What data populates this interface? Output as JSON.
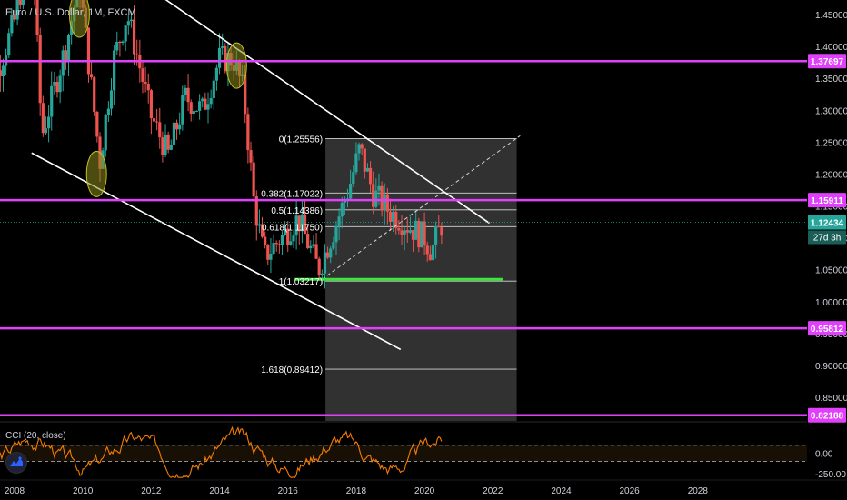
{
  "header": {
    "symbol_title": "Euro / U.S. Dollar, 1M, FXCM"
  },
  "indicator": {
    "title": "CCI (20, close)"
  },
  "icons": {
    "logo": "tradingview-logo-icon"
  },
  "colors": {
    "background": "#000000",
    "bull": "#26a69a",
    "bear": "#ef5350",
    "magenta_level": "#e040fb",
    "support": "#39e639",
    "trend_line": "#ffffff",
    "fib_box": "#3a3a3a",
    "cci": "#f57c00",
    "label_text": "#d1d4dc"
  },
  "chart_data": {
    "type": "candlestick",
    "y_axis": {
      "range": [
        0.8,
        1.47
      ],
      "ticks": [
        "0.85000",
        "0.90000",
        "0.95000",
        "1.00000",
        "1.05000",
        "1.10000",
        "1.15000",
        "1.20000",
        "1.25000",
        "1.30000",
        "1.35000",
        "1.40000",
        "1.45000"
      ]
    },
    "x_axis": {
      "range": [
        2007.0,
        2030.0
      ],
      "ticks": [
        "2008",
        "2010",
        "2012",
        "2014",
        "2016",
        "2018",
        "2020",
        "2022",
        "2024",
        "2026",
        "2028"
      ]
    },
    "price_path": [
      [
        2007.0,
        1.3
      ],
      [
        2007.5,
        1.36
      ],
      [
        2008.0,
        1.44
      ],
      [
        2008.5,
        1.57
      ],
      [
        2008.8,
        1.26
      ],
      [
        2009.0,
        1.3
      ],
      [
        2009.5,
        1.4
      ],
      [
        2009.9,
        1.5
      ],
      [
        2010.2,
        1.36
      ],
      [
        2010.5,
        1.22
      ],
      [
        2010.9,
        1.38
      ],
      [
        2011.3,
        1.45
      ],
      [
        2011.7,
        1.36
      ],
      [
        2012.0,
        1.29
      ],
      [
        2012.5,
        1.23
      ],
      [
        2013.0,
        1.32
      ],
      [
        2013.5,
        1.3
      ],
      [
        2014.0,
        1.38
      ],
      [
        2014.4,
        1.38
      ],
      [
        2014.7,
        1.33
      ],
      [
        2015.0,
        1.16
      ],
      [
        2015.3,
        1.07
      ],
      [
        2015.8,
        1.1
      ],
      [
        2016.3,
        1.13
      ],
      [
        2016.9,
        1.05
      ],
      [
        2017.4,
        1.12
      ],
      [
        2017.8,
        1.18
      ],
      [
        2018.1,
        1.24
      ],
      [
        2018.5,
        1.17
      ],
      [
        2019.0,
        1.14
      ],
      [
        2019.5,
        1.12
      ],
      [
        2020.0,
        1.1
      ],
      [
        2020.2,
        1.08
      ],
      [
        2020.5,
        1.12
      ]
    ],
    "horizontal_levels": [
      {
        "label": "1.37697",
        "value": 1.37697
      },
      {
        "label": "1.15911",
        "value": 1.15911
      },
      {
        "label": "0.95812",
        "value": 0.95812
      },
      {
        "label": "0.82188",
        "value": 0.82188
      }
    ],
    "current_price": {
      "label": "1.12434",
      "value": 1.12434,
      "countdown": "27d 3h"
    },
    "fibonacci": {
      "start": 2017.1,
      "end": 2022.7,
      "levels": [
        {
          "label": "0(1.25556)",
          "value": 1.25556
        },
        {
          "label": "0.382(1.17022)",
          "value": 1.17022
        },
        {
          "label": "0.5(1.14386)",
          "value": 1.14386
        },
        {
          "label": "0.618(1.11750)",
          "value": 1.1175
        },
        {
          "label": "1(1.03217)",
          "value": 1.03217
        },
        {
          "label": "1.618(0.89412)",
          "value": 0.89412
        }
      ]
    },
    "support_line": {
      "from": 2016.2,
      "to": 2022.3,
      "value": 1.035
    },
    "trend_lines": [
      {
        "from": [
          2009.0,
          1.6
        ],
        "to": [
          2021.9,
          1.123
        ]
      },
      {
        "from": [
          2008.5,
          1.233
        ],
        "to": [
          2019.3,
          0.925
        ]
      }
    ],
    "dashed_line": {
      "from": [
        2017.0,
        1.035
      ],
      "to": [
        2022.8,
        1.26
      ]
    },
    "highlights": [
      {
        "x": 2009.9,
        "y": 1.45
      },
      {
        "x": 2010.4,
        "y": 1.2
      },
      {
        "x": 2014.5,
        "y": 1.37
      }
    ],
    "cci": {
      "range": [
        -320,
        380
      ],
      "ticks": [
        "0.00",
        "-250.00"
      ],
      "band_upper": 100,
      "band_lower": -100,
      "end": 2020.5
    }
  }
}
